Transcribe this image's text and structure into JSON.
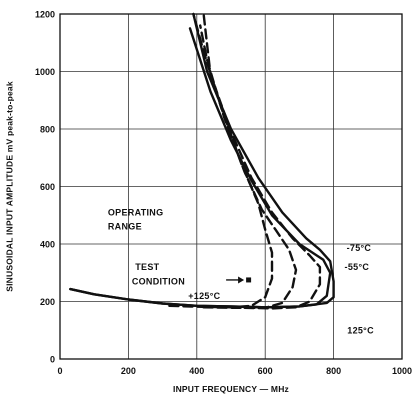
{
  "chart_data": {
    "type": "line",
    "title": "",
    "xlabel": "INPUT FREQUENCY — MHz",
    "ylabel": "SINUSOIDAL INPUT AMPLITUDE mV peak-to-peak",
    "xlim": [
      0,
      1000
    ],
    "ylim": [
      0,
      1200
    ],
    "x_ticks": [
      0,
      200,
      400,
      600,
      800,
      1000
    ],
    "y_ticks": [
      0,
      200,
      400,
      600,
      800,
      1000,
      1200
    ],
    "grid": true,
    "series": [
      {
        "name": "-75°C",
        "style": "solid",
        "color": "#111111",
        "points": [
          [
            30,
            243
          ],
          [
            100,
            225
          ],
          [
            200,
            207
          ],
          [
            300,
            193
          ],
          [
            400,
            185
          ],
          [
            500,
            183
          ],
          [
            600,
            180
          ],
          [
            700,
            183
          ],
          [
            780,
            195
          ],
          [
            800,
            215
          ],
          [
            800,
            270
          ],
          [
            790,
            340
          ],
          [
            760,
            380
          ],
          [
            720,
            420
          ],
          [
            650,
            510
          ],
          [
            580,
            630
          ],
          [
            500,
            800
          ],
          [
            430,
            1000
          ],
          [
            390,
            1200
          ]
        ]
      },
      {
        "name": "-55°C",
        "style": "solid",
        "color": "#111111",
        "points": [
          [
            30,
            243
          ],
          [
            100,
            225
          ],
          [
            200,
            207
          ],
          [
            300,
            193
          ],
          [
            400,
            185
          ],
          [
            500,
            183
          ],
          [
            600,
            180
          ],
          [
            700,
            183
          ],
          [
            750,
            190
          ],
          [
            780,
            220
          ],
          [
            790,
            300
          ],
          [
            770,
            345
          ],
          [
            700,
            400
          ],
          [
            620,
            500
          ],
          [
            560,
            620
          ],
          [
            500,
            760
          ],
          [
            440,
            930
          ],
          [
            380,
            1150
          ]
        ]
      },
      {
        "name": "+125°C",
        "style": "dashed",
        "color": "#111111",
        "points": [
          [
            320,
            185
          ],
          [
            400,
            182
          ],
          [
            500,
            180
          ],
          [
            560,
            185
          ],
          [
            600,
            215
          ],
          [
            620,
            280
          ],
          [
            620,
            370
          ],
          [
            600,
            450
          ],
          [
            580,
            540
          ],
          [
            530,
            680
          ],
          [
            470,
            880
          ],
          [
            420,
            1070
          ],
          [
            390,
            1200
          ]
        ]
      },
      {
        "name": "",
        "style": "dashed",
        "color": "#111111",
        "points": [
          [
            420,
            180
          ],
          [
            500,
            178
          ],
          [
            600,
            178
          ],
          [
            650,
            195
          ],
          [
            680,
            250
          ],
          [
            690,
            310
          ],
          [
            670,
            380
          ],
          [
            630,
            450
          ],
          [
            590,
            520
          ],
          [
            540,
            650
          ],
          [
            480,
            840
          ],
          [
            430,
            1040
          ],
          [
            410,
            1160
          ]
        ]
      },
      {
        "name": "",
        "style": "dashed",
        "color": "#111111",
        "points": [
          [
            540,
            178
          ],
          [
            620,
            176
          ],
          [
            690,
            180
          ],
          [
            730,
            200
          ],
          [
            760,
            260
          ],
          [
            760,
            320
          ],
          [
            730,
            360
          ],
          [
            680,
            420
          ],
          [
            620,
            510
          ],
          [
            560,
            630
          ],
          [
            500,
            790
          ],
          [
            440,
            990
          ],
          [
            420,
            1200
          ]
        ]
      }
    ],
    "annotations": [
      {
        "text": "OPERATING",
        "x": 140,
        "y": 500
      },
      {
        "text": "RANGE",
        "x": 140,
        "y": 450
      },
      {
        "text": "TEST",
        "x": 220,
        "y": 310
      },
      {
        "text": "CONDITION",
        "x": 210,
        "y": 260
      },
      {
        "text": "+125°C",
        "x": 375,
        "y": 208
      },
      {
        "text": "-75°C",
        "x": 838,
        "y": 375
      },
      {
        "text": "-55°C",
        "x": 832,
        "y": 310
      },
      {
        "text": "125°C",
        "x": 840,
        "y": 88
      }
    ],
    "test_condition_marker": {
      "x": 550,
      "y": 275
    }
  }
}
